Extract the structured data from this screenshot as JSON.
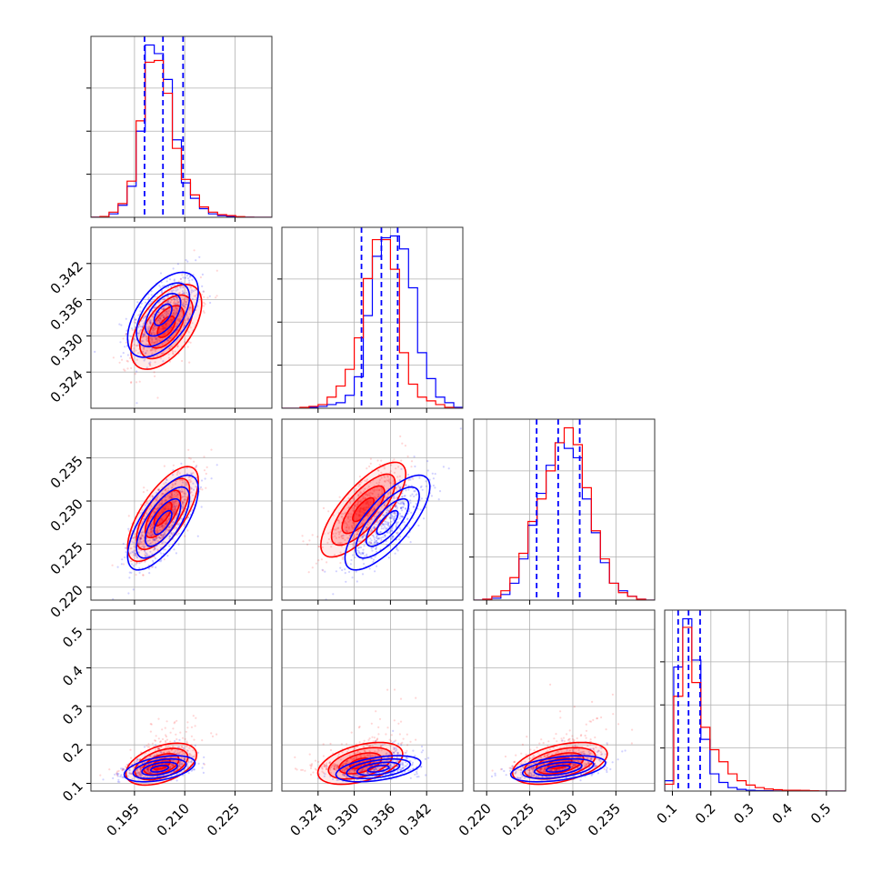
{
  "chart_data": {
    "type": "corner",
    "grid": true,
    "colors": {
      "series_a": "#0000ff",
      "series_b": "#ff0000"
    },
    "parameters": [
      {
        "range": [
          0.182,
          0.236
        ],
        "ticks": [
          0.195,
          0.21,
          0.225
        ],
        "tick_labels": [
          "0.195",
          "0.210",
          "0.225"
        ],
        "mean": 0.205,
        "sd": 0.0048
      },
      {
        "range": [
          0.318,
          0.348
        ],
        "ticks": [
          0.324,
          0.33,
          0.336,
          0.342
        ],
        "tick_labels": [
          "0.324",
          "0.330",
          "0.336",
          "0.342"
        ],
        "mean": 0.332,
        "sd": 0.0032
      },
      {
        "range": [
          0.2185,
          0.2395
        ],
        "ticks": [
          0.22,
          0.225,
          0.23,
          0.235
        ],
        "tick_labels": [
          "0.220",
          "0.225",
          "0.230",
          "0.235"
        ],
        "mean": 0.2285,
        "sd": 0.0025
      },
      {
        "range": [
          0.08,
          0.55
        ],
        "ticks": [
          0.1,
          0.2,
          0.3,
          0.4,
          0.5
        ],
        "tick_labels": [
          "0.1",
          "0.2",
          "0.3",
          "0.4",
          "0.5"
        ],
        "mean": 0.15,
        "sd": 0.04
      }
    ],
    "quantiles": [
      [
        0.198,
        0.2035,
        0.2095
      ],
      [
        0.3312,
        0.3345,
        0.3372
      ],
      [
        0.2258,
        0.2283,
        0.2308
      ],
      [
        0.115,
        0.142,
        0.172
      ]
    ],
    "histograms": [
      {
        "bin_edges": [
          0.182,
          0.1847,
          0.1874,
          0.1901,
          0.1928,
          0.1955,
          0.1982,
          0.2009,
          0.2036,
          0.2063,
          0.209,
          0.2117,
          0.2144,
          0.2171,
          0.2198,
          0.2225,
          0.2252,
          0.2279,
          0.2306,
          0.2333,
          0.236
        ],
        "series_a": [
          0.1,
          0.3,
          2,
          7,
          18,
          50,
          100,
          95,
          80,
          45,
          20,
          11,
          5,
          2,
          1,
          0.5,
          0.2,
          0.1,
          0,
          0
        ],
        "series_b": [
          0.1,
          0.5,
          3,
          8,
          21,
          56,
          90,
          91,
          72,
          40,
          22,
          13,
          6,
          3,
          1.5,
          1,
          0.4,
          0.1,
          0,
          0
        ]
      },
      {
        "bin_edges": [
          0.318,
          0.3195,
          0.321,
          0.3225,
          0.324,
          0.3255,
          0.327,
          0.3285,
          0.33,
          0.3315,
          0.333,
          0.3345,
          0.336,
          0.3375,
          0.339,
          0.3405,
          0.342,
          0.3435,
          0.345,
          0.3465,
          0.348
        ],
        "series_a": [
          0,
          0,
          0,
          0.5,
          1,
          2,
          3,
          7,
          17,
          50,
          82,
          92,
          93,
          86,
          65,
          30,
          16,
          6,
          3,
          0.5
        ],
        "series_b": [
          0,
          0,
          0.5,
          1,
          2,
          6,
          12,
          21,
          38,
          70,
          91,
          91,
          75,
          30,
          13,
          6,
          4,
          2,
          0.5,
          0
        ]
      },
      {
        "bin_edges": [
          0.2185,
          0.21955,
          0.2206,
          0.22165,
          0.2227,
          0.22375,
          0.2248,
          0.22585,
          0.2269,
          0.22795,
          0.229,
          0.23005,
          0.2311,
          0.23215,
          0.2332,
          0.23425,
          0.2353,
          0.23635,
          0.2374,
          0.23845,
          0.2395
        ],
        "series_a": [
          0,
          0.5,
          1,
          3,
          9,
          22,
          40,
          57,
          72,
          84,
          81,
          76,
          54,
          36,
          20,
          9,
          5,
          2,
          0.5,
          0
        ],
        "series_b": [
          0,
          0.5,
          2,
          5,
          12,
          25,
          42,
          54,
          69,
          84,
          92,
          83,
          60,
          37,
          22,
          9,
          4,
          2,
          0.5,
          0
        ]
      },
      {
        "bin_edges": [
          0.08,
          0.1035,
          0.127,
          0.1505,
          0.174,
          0.1975,
          0.221,
          0.2445,
          0.268,
          0.2915,
          0.315,
          0.3385,
          0.362,
          0.3855,
          0.409,
          0.4325,
          0.456,
          0.4795,
          0.503,
          0.5265,
          0.55
        ],
        "series_a": [
          6,
          72,
          100,
          76,
          30,
          10,
          5,
          2,
          1,
          0.5,
          0.3,
          0.2,
          0.1,
          0.1,
          0.1,
          0,
          0,
          0,
          0,
          0
        ],
        "series_b": [
          4,
          55,
          95,
          63,
          37,
          24,
          17,
          10,
          6,
          3.5,
          2,
          1.2,
          0.8,
          0.5,
          0.5,
          0.4,
          0.2,
          0.1,
          0,
          0
        ]
      }
    ],
    "pairs": [
      {
        "row": 1,
        "col": 0,
        "series_a": {
          "center": [
            0.2035,
            0.3335
          ],
          "sd": [
            0.0048,
            0.0032
          ],
          "corr": 0.55
        },
        "series_b": {
          "center": [
            0.2045,
            0.3315
          ],
          "sd": [
            0.0048,
            0.0032
          ],
          "corr": 0.55
        }
      },
      {
        "row": 2,
        "col": 0,
        "series_a": {
          "center": [
            0.2035,
            0.2275
          ],
          "sd": [
            0.0048,
            0.0025
          ],
          "corr": 0.7
        },
        "series_b": {
          "center": [
            0.2035,
            0.2285
          ],
          "sd": [
            0.0048,
            0.0025
          ],
          "corr": 0.7
        }
      },
      {
        "row": 2,
        "col": 1,
        "series_a": {
          "center": [
            0.3355,
            0.2275
          ],
          "sd": [
            0.0032,
            0.0025
          ],
          "corr": 0.75
        },
        "series_b": {
          "center": [
            0.3315,
            0.229
          ],
          "sd": [
            0.0032,
            0.0025
          ],
          "corr": 0.75
        }
      },
      {
        "row": 3,
        "col": 0,
        "series_a": {
          "center": [
            0.2025,
            0.138
          ],
          "sd": [
            0.0048,
            0.028
          ],
          "corr": 0.45
        },
        "series_b": {
          "center": [
            0.203,
            0.15
          ],
          "sd": [
            0.0048,
            0.045
          ],
          "corr": 0.45
        }
      },
      {
        "row": 3,
        "col": 1,
        "series_a": {
          "center": [
            0.334,
            0.138
          ],
          "sd": [
            0.0032,
            0.028
          ],
          "corr": 0.45
        },
        "series_b": {
          "center": [
            0.331,
            0.152
          ],
          "sd": [
            0.0032,
            0.045
          ],
          "corr": 0.45
        }
      },
      {
        "row": 3,
        "col": 2,
        "series_a": {
          "center": [
            0.2283,
            0.138
          ],
          "sd": [
            0.0025,
            0.028
          ],
          "corr": 0.45
        },
        "series_b": {
          "center": [
            0.2285,
            0.152
          ],
          "sd": [
            0.0025,
            0.045
          ],
          "corr": 0.45
        }
      }
    ],
    "contour_levels_sigma": [
      0.5,
      1,
      1.5,
      2
    ]
  }
}
